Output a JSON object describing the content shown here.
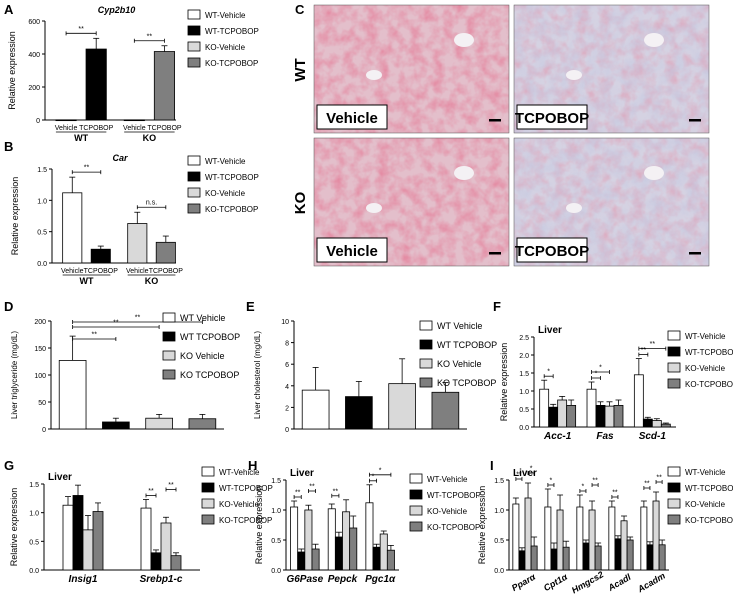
{
  "colors": {
    "wt_vehicle": "#ffffff",
    "wt_tcpobop": "#000000",
    "ko_vehicle": "#d9d9d9",
    "ko_tcpobop": "#7f7f7f",
    "stain_red": "#c8334f",
    "stain_blue": "#8c93be"
  },
  "panel_letters": [
    "A",
    "B",
    "C",
    "D",
    "E",
    "F",
    "G",
    "H",
    "I"
  ],
  "micrograph": {
    "row_labels": [
      "WT",
      "KO"
    ],
    "col_labels": [
      "Vehicle",
      "TCPOBOP",
      "Vehicle",
      "TCPOBOP"
    ]
  },
  "chart_data": [
    {
      "id": "A",
      "type": "bar",
      "title": "Cyp2b10",
      "xlabel": "",
      "ylabel": "Relative expression",
      "ylim": [
        0,
        600
      ],
      "yticks": [
        0,
        200,
        400,
        600
      ],
      "categories": [
        "Vehicle",
        "TCPOBOP",
        "Vehicle",
        "TCPOBOP"
      ],
      "groups": [
        "WT",
        "KO"
      ],
      "values": [
        1,
        430,
        1,
        415
      ],
      "errors": [
        0.5,
        65,
        0.5,
        35
      ],
      "colors": [
        "#ffffff",
        "#000000",
        "#d9d9d9",
        "#7f7f7f"
      ],
      "legend": [
        "WT-Vehicle",
        "WT-TCPOBOP",
        "KO-Vehicle",
        "KO-TCPOBOP"
      ],
      "significance": [
        {
          "a": 0,
          "b": 1,
          "label": "**"
        },
        {
          "a": 2,
          "b": 3,
          "label": "**"
        }
      ]
    },
    {
      "id": "B",
      "type": "bar",
      "title": "Car",
      "xlabel": "",
      "ylabel": "Relative expression",
      "ylim": [
        0,
        1.5
      ],
      "yticks": [
        0.0,
        0.5,
        1.0,
        1.5
      ],
      "categories": [
        "Vehicle",
        "TCPOBOP",
        "Vehicle",
        "TCPOBOP"
      ],
      "groups": [
        "WT",
        "KO"
      ],
      "values": [
        1.12,
        0.22,
        0.63,
        0.33
      ],
      "errors": [
        0.25,
        0.05,
        0.18,
        0.1
      ],
      "colors": [
        "#ffffff",
        "#000000",
        "#d9d9d9",
        "#7f7f7f"
      ],
      "legend": [
        "WT-Vehicle",
        "WT-TCPOBOP",
        "KO-Vehicle",
        "KO-TCPOBOP"
      ],
      "significance": [
        {
          "a": 0,
          "b": 1,
          "label": "**"
        },
        {
          "a": 2,
          "b": 3,
          "label": "n.s."
        }
      ]
    },
    {
      "id": "D",
      "type": "bar",
      "title": "",
      "xlabel": "",
      "ylabel": "Liver triglyceride (mg/dL)",
      "ylim": [
        0,
        200
      ],
      "yticks": [
        0,
        50,
        100,
        150,
        200
      ],
      "categories": [
        "WT Vehicle",
        "WT TCPOBOP",
        "KO Vehicle",
        "KO TCPOBOP"
      ],
      "values": [
        127,
        13,
        20,
        19
      ],
      "errors": [
        45,
        7,
        7,
        8
      ],
      "colors": [
        "#ffffff",
        "#000000",
        "#d9d9d9",
        "#7f7f7f"
      ],
      "legend": [
        "WT Vehicle",
        "WT TCPOBOP",
        "KO Vehicle",
        "KO TCPOBOP"
      ],
      "significance": [
        {
          "a": 0,
          "b": 1,
          "label": "**"
        },
        {
          "a": 0,
          "b": 2,
          "label": "**"
        },
        {
          "a": 0,
          "b": 3,
          "label": "**"
        }
      ]
    },
    {
      "id": "E",
      "type": "bar",
      "title": "",
      "xlabel": "",
      "ylabel": "Liver cholesterol (mg/dL)",
      "ylim": [
        0,
        10
      ],
      "yticks": [
        0,
        2,
        4,
        6,
        8,
        10
      ],
      "categories": [
        "WT Vehicle",
        "WT TCPOBOP",
        "KO Vehicle",
        "KO TCPOBOP"
      ],
      "values": [
        3.6,
        3.0,
        4.2,
        3.4
      ],
      "errors": [
        2.1,
        1.4,
        2.3,
        0.9
      ],
      "colors": [
        "#ffffff",
        "#000000",
        "#d9d9d9",
        "#7f7f7f"
      ],
      "legend": [
        "WT Vehicle",
        "WT TCPOBOP",
        "KO Vehicle",
        "KO TCPOBOP"
      ],
      "significance": []
    },
    {
      "id": "F",
      "type": "bar",
      "title": "Liver",
      "xlabel": "",
      "ylabel": "Relative expression",
      "ylim": [
        0,
        2.5
      ],
      "yticks": [
        0.0,
        0.5,
        1.0,
        1.5,
        2.0,
        2.5
      ],
      "genes": [
        "Acc-1",
        "Fas",
        "Scd-1"
      ],
      "series": [
        {
          "name": "WT-Vehicle",
          "values": [
            1.05,
            1.05,
            1.45
          ],
          "errors": [
            0.25,
            0.2,
            0.45
          ]
        },
        {
          "name": "WT-TCPOBOP",
          "values": [
            0.55,
            0.6,
            0.22
          ],
          "errors": [
            0.08,
            0.1,
            0.05
          ]
        },
        {
          "name": "KO-Vehicle",
          "values": [
            0.75,
            0.58,
            0.18
          ],
          "errors": [
            0.1,
            0.12,
            0.05
          ]
        },
        {
          "name": "KO-TCPOBOP",
          "values": [
            0.6,
            0.6,
            0.08
          ],
          "errors": [
            0.15,
            0.15,
            0.03
          ]
        }
      ],
      "significance": [
        {
          "gene": 0,
          "a": 0,
          "b": 1,
          "label": "*"
        },
        {
          "gene": 1,
          "a": 0,
          "b": 1,
          "label": "*"
        },
        {
          "gene": 1,
          "a": 0,
          "b": 2,
          "label": "*"
        },
        {
          "gene": 2,
          "a": 0,
          "b": 1,
          "label": "**"
        },
        {
          "gene": 2,
          "a": 0,
          "b": 3,
          "label": "**"
        }
      ]
    },
    {
      "id": "G",
      "type": "bar",
      "title": "Liver",
      "xlabel": "",
      "ylabel": "Relative expression",
      "ylim": [
        0,
        1.5
      ],
      "yticks": [
        0.0,
        0.5,
        1.0,
        1.5
      ],
      "genes": [
        "Insig1",
        "Srebp1-c"
      ],
      "series": [
        {
          "name": "WT-Vehicle",
          "values": [
            1.13,
            1.08
          ],
          "errors": [
            0.15,
            0.15
          ]
        },
        {
          "name": "WT-TCPOBOP",
          "values": [
            1.3,
            0.3
          ],
          "errors": [
            0.18,
            0.05
          ]
        },
        {
          "name": "KO-Vehicle",
          "values": [
            0.7,
            0.82
          ],
          "errors": [
            0.25,
            0.1
          ]
        },
        {
          "name": "KO-TCPOBOP",
          "values": [
            1.02,
            0.25
          ],
          "errors": [
            0.15,
            0.05
          ]
        }
      ],
      "significance": [
        {
          "gene": 1,
          "a": 0,
          "b": 1,
          "label": "**"
        },
        {
          "gene": 1,
          "a": 2,
          "b": 3,
          "label": "**"
        }
      ]
    },
    {
      "id": "H",
      "type": "bar",
      "title": "Liver",
      "xlabel": "",
      "ylabel": "Relative expression",
      "ylim": [
        0,
        1.5
      ],
      "yticks": [
        0.0,
        0.5,
        1.0,
        1.5
      ],
      "genes": [
        "G6Pase",
        "Pepck",
        "Pgc1α"
      ],
      "series": [
        {
          "name": "WT-Vehicle",
          "values": [
            1.05,
            1.02,
            1.12
          ],
          "errors": [
            0.1,
            0.08,
            0.3
          ]
        },
        {
          "name": "WT-TCPOBOP",
          "values": [
            0.3,
            0.55,
            0.38
          ],
          "errors": [
            0.05,
            0.08,
            0.05
          ]
        },
        {
          "name": "KO-Vehicle",
          "values": [
            1.0,
            0.97,
            0.6
          ],
          "errors": [
            0.08,
            0.2,
            0.05
          ]
        },
        {
          "name": "KO-TCPOBOP",
          "values": [
            0.35,
            0.7,
            0.33
          ],
          "errors": [
            0.08,
            0.2,
            0.08
          ]
        }
      ],
      "significance": [
        {
          "gene": 0,
          "a": 0,
          "b": 1,
          "label": "**"
        },
        {
          "gene": 0,
          "a": 2,
          "b": 3,
          "label": "**"
        },
        {
          "gene": 1,
          "a": 0,
          "b": 1,
          "label": "**"
        },
        {
          "gene": 2,
          "a": 0,
          "b": 1,
          "label": "*"
        },
        {
          "gene": 2,
          "a": 0,
          "b": 3,
          "label": "*"
        }
      ]
    },
    {
      "id": "I",
      "type": "bar",
      "title": "Liver",
      "xlabel": "",
      "ylabel": "Relative expression",
      "ylim": [
        0,
        1.5
      ],
      "yticks": [
        0.0,
        0.5,
        1.0,
        1.5
      ],
      "genes": [
        "Pparα",
        "Cpt1α",
        "Hmgcs2",
        "Acadl",
        "Acadm"
      ],
      "series": [
        {
          "name": "WT-Vehicle",
          "values": [
            1.1,
            1.05,
            1.05,
            1.05,
            1.05
          ],
          "errors": [
            0.1,
            0.3,
            0.2,
            0.1,
            0.1
          ]
        },
        {
          "name": "WT-TCPOBOP",
          "values": [
            0.32,
            0.35,
            0.45,
            0.52,
            0.42
          ],
          "errors": [
            0.05,
            0.1,
            0.05,
            0.05,
            0.05
          ]
        },
        {
          "name": "KO-Vehicle",
          "values": [
            1.2,
            1.0,
            1.0,
            0.82,
            1.15
          ],
          "errors": [
            0.25,
            0.25,
            0.15,
            0.08,
            0.15
          ]
        },
        {
          "name": "KO-TCPOBOP",
          "values": [
            0.4,
            0.38,
            0.4,
            0.5,
            0.42
          ],
          "errors": [
            0.15,
            0.1,
            0.05,
            0.05,
            0.08
          ]
        }
      ],
      "significance": [
        {
          "gene": 0,
          "a": 0,
          "b": 1,
          "label": "**"
        },
        {
          "gene": 0,
          "a": 2,
          "b": 3,
          "label": "*"
        },
        {
          "gene": 1,
          "a": 0,
          "b": 1,
          "label": "*"
        },
        {
          "gene": 2,
          "a": 0,
          "b": 1,
          "label": "*"
        },
        {
          "gene": 2,
          "a": 2,
          "b": 3,
          "label": "**"
        },
        {
          "gene": 3,
          "a": 0,
          "b": 1,
          "label": "**"
        },
        {
          "gene": 4,
          "a": 0,
          "b": 1,
          "label": "**"
        },
        {
          "gene": 4,
          "a": 2,
          "b": 3,
          "label": "**"
        }
      ]
    }
  ]
}
